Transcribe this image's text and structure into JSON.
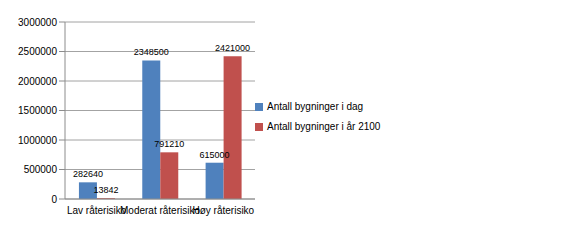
{
  "chart_data": {
    "type": "bar",
    "categories": [
      "Lav råterisiko",
      "Moderat råterisiko",
      "Høy råterisiko"
    ],
    "series": [
      {
        "name": "Antall bygninger i dag",
        "color": "#4f81bd",
        "values": [
          282640,
          2348500,
          615000
        ]
      },
      {
        "name": "Antall bygninger i år 2100",
        "color": "#c0504d",
        "values": [
          13842,
          791210,
          2421000
        ]
      }
    ],
    "ylim": [
      0,
      3000000
    ],
    "yticks": [
      0,
      500000,
      1000000,
      1500000,
      2000000,
      2500000,
      3000000
    ],
    "grid": true,
    "legend": "right",
    "data_labels": true
  }
}
